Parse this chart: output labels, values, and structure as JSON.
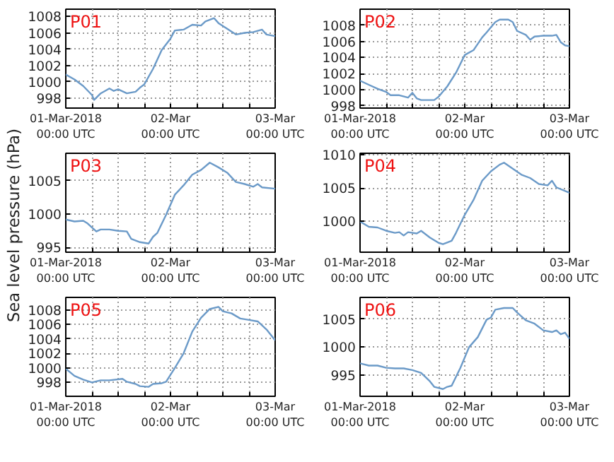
{
  "chart_data": [
    {
      "type": "line",
      "title": "P01",
      "x": [
        "2018-03-01T00:00",
        "2018-03-01T02:00",
        "2018-03-01T04:00",
        "2018-03-01T06:00",
        "2018-03-01T06:30",
        "2018-03-01T08:00",
        "2018-03-01T10:00",
        "2018-03-01T11:00",
        "2018-03-01T12:00",
        "2018-03-01T14:00",
        "2018-03-01T16:00",
        "2018-03-01T17:00",
        "2018-03-01T18:00",
        "2018-03-01T20:00",
        "2018-03-01T22:00",
        "2018-03-02T00:00",
        "2018-03-02T01:00",
        "2018-03-02T03:00",
        "2018-03-02T05:00",
        "2018-03-02T07:00",
        "2018-03-02T08:00",
        "2018-03-02T10:00",
        "2018-03-02T11:00",
        "2018-03-02T13:00",
        "2018-03-02T15:00",
        "2018-03-02T17:00",
        "2018-03-02T19:00",
        "2018-03-02T21:00",
        "2018-03-02T22:00",
        "2018-03-03T00:00"
      ],
      "series": [
        {
          "color": "#6b9ac8",
          "values": [
            1000.9,
            1000.3,
            999.5,
            998.4,
            997.8,
            998.6,
            999.2,
            998.9,
            999.1,
            998.6,
            998.8,
            999.3,
            999.7,
            1001.6,
            1003.9,
            1005.3,
            1006.3,
            1006.4,
            1007.0,
            1006.9,
            1007.4,
            1007.8,
            1007.2,
            1006.5,
            1005.8,
            1006.0,
            1006.1,
            1006.4,
            1005.8,
            1005.6
          ]
        }
      ],
      "xlim": [
        "2018-03-01T00:00",
        "2018-03-03T00:00"
      ],
      "xticks": [
        {
          "value": "2018-03-01T00:00",
          "label": "01-Mar-2018\n00:00 UTC"
        },
        {
          "value": "2018-03-01T06:00",
          "label": null
        },
        {
          "value": "2018-03-01T12:00",
          "label": null
        },
        {
          "value": "2018-03-01T18:00",
          "label": null
        },
        {
          "value": "2018-03-02T00:00",
          "label": "02-Mar\n00:00 UTC"
        },
        {
          "value": "2018-03-02T06:00",
          "label": null
        },
        {
          "value": "2018-03-02T12:00",
          "label": null
        },
        {
          "value": "2018-03-02T18:00",
          "label": null
        },
        {
          "value": "2018-03-03T00:00",
          "label": "03-Mar\n00:00 UTC"
        }
      ],
      "ylim": [
        996.8,
        1008.9
      ],
      "yticks": [
        998,
        1000,
        1002,
        1004,
        1006,
        1008
      ],
      "grid": true
    },
    {
      "type": "line",
      "title": "P02",
      "x": [
        "2018-03-01T00:00",
        "2018-03-01T02:00",
        "2018-03-01T04:00",
        "2018-03-01T06:00",
        "2018-03-01T07:00",
        "2018-03-01T09:00",
        "2018-03-01T11:00",
        "2018-03-01T12:00",
        "2018-03-01T13:00",
        "2018-03-01T14:00",
        "2018-03-01T17:00",
        "2018-03-01T18:00",
        "2018-03-01T20:00",
        "2018-03-01T22:00",
        "2018-03-02T00:00",
        "2018-03-02T02:00",
        "2018-03-02T04:00",
        "2018-03-02T05:00",
        "2018-03-02T07:00",
        "2018-03-02T08:00",
        "2018-03-02T10:00",
        "2018-03-02T11:00",
        "2018-03-02T12:00",
        "2018-03-02T14:00",
        "2018-03-02T15:00",
        "2018-03-02T16:00",
        "2018-03-02T18:00",
        "2018-03-02T20:00",
        "2018-03-02T21:00",
        "2018-03-02T22:00",
        "2018-03-02T23:00",
        "2018-03-03T00:00"
      ],
      "series": [
        {
          "color": "#6b9ac8",
          "values": [
            1001.1,
            1000.6,
            1000.1,
            999.7,
            999.3,
            999.3,
            999.0,
            999.6,
            998.9,
            998.7,
            998.7,
            999.1,
            1000.4,
            1002.1,
            1004.3,
            1004.9,
            1006.5,
            1007.1,
            1008.4,
            1008.7,
            1008.7,
            1008.4,
            1007.3,
            1006.8,
            1006.2,
            1006.6,
            1006.7,
            1006.7,
            1006.8,
            1005.9,
            1005.5,
            1005.4
          ]
        }
      ],
      "xlim": [
        "2018-03-01T00:00",
        "2018-03-03T00:00"
      ],
      "xticks": [
        {
          "value": "2018-03-01T00:00",
          "label": "01-Mar-2018\n00:00 UTC"
        },
        {
          "value": "2018-03-01T06:00",
          "label": null
        },
        {
          "value": "2018-03-01T12:00",
          "label": null
        },
        {
          "value": "2018-03-01T18:00",
          "label": null
        },
        {
          "value": "2018-03-02T00:00",
          "label": "02-Mar\n00:00 UTC"
        },
        {
          "value": "2018-03-02T06:00",
          "label": null
        },
        {
          "value": "2018-03-02T12:00",
          "label": null
        },
        {
          "value": "2018-03-02T18:00",
          "label": null
        },
        {
          "value": "2018-03-03T00:00",
          "label": "03-Mar\n00:00 UTC"
        }
      ],
      "ylim": [
        997.7,
        1010.0
      ],
      "yticks": [
        998,
        1000,
        1002,
        1004,
        1006,
        1008
      ],
      "grid": true
    },
    {
      "type": "line",
      "title": "P03",
      "ylabel": "Sea level pressure (hPa)",
      "x": [
        "2018-03-01T00:00",
        "2018-03-01T02:00",
        "2018-03-01T04:00",
        "2018-03-01T05:00",
        "2018-03-01T07:00",
        "2018-03-01T08:00",
        "2018-03-01T10:00",
        "2018-03-01T12:00",
        "2018-03-01T14:00",
        "2018-03-01T15:00",
        "2018-03-01T17:00",
        "2018-03-01T19:00",
        "2018-03-01T20:00",
        "2018-03-01T21:00",
        "2018-03-01T23:00",
        "2018-03-02T01:00",
        "2018-03-02T03:00",
        "2018-03-02T05:00",
        "2018-03-02T07:00",
        "2018-03-02T09:00",
        "2018-03-02T11:00",
        "2018-03-02T13:00",
        "2018-03-02T15:00",
        "2018-03-02T17:00",
        "2018-03-02T19:00",
        "2018-03-02T20:00",
        "2018-03-02T21:00",
        "2018-03-03T00:00"
      ],
      "series": [
        {
          "color": "#6b9ac8",
          "values": [
            999.2,
            998.9,
            999.0,
            998.6,
            997.4,
            997.7,
            997.7,
            997.5,
            997.4,
            996.3,
            995.8,
            995.6,
            996.6,
            997.2,
            999.9,
            1002.9,
            1004.3,
            1005.9,
            1006.6,
            1007.7,
            1007.0,
            1006.2,
            1004.8,
            1004.5,
            1004.1,
            1004.5,
            1004.0,
            1003.8
          ]
        }
      ],
      "xlim": [
        "2018-03-01T00:00",
        "2018-03-03T00:00"
      ],
      "xticks": [
        {
          "value": "2018-03-01T00:00",
          "label": "01-Mar-2018\n00:00 UTC"
        },
        {
          "value": "2018-03-01T06:00",
          "label": null
        },
        {
          "value": "2018-03-01T12:00",
          "label": null
        },
        {
          "value": "2018-03-01T18:00",
          "label": null
        },
        {
          "value": "2018-03-02T00:00",
          "label": "02-Mar\n00:00 UTC"
        },
        {
          "value": "2018-03-02T06:00",
          "label": null
        },
        {
          "value": "2018-03-02T12:00",
          "label": null
        },
        {
          "value": "2018-03-02T18:00",
          "label": null
        },
        {
          "value": "2018-03-03T00:00",
          "label": "03-Mar\n00:00 UTC"
        }
      ],
      "ylim": [
        994.3,
        1009.1
      ],
      "yticks": [
        995,
        1000,
        1005
      ],
      "grid": true
    },
    {
      "type": "line",
      "title": "P04",
      "x": [
        "2018-03-01T00:00",
        "2018-03-01T02:00",
        "2018-03-01T04:00",
        "2018-03-01T06:00",
        "2018-03-01T08:00",
        "2018-03-01T09:00",
        "2018-03-01T10:00",
        "2018-03-01T11:00",
        "2018-03-01T13:00",
        "2018-03-01T14:00",
        "2018-03-01T16:00",
        "2018-03-01T18:00",
        "2018-03-01T19:00",
        "2018-03-01T21:00",
        "2018-03-01T22:00",
        "2018-03-02T00:00",
        "2018-03-02T02:00",
        "2018-03-02T04:00",
        "2018-03-02T06:00",
        "2018-03-02T08:00",
        "2018-03-02T09:00",
        "2018-03-02T11:00",
        "2018-03-02T13:00",
        "2018-03-02T15:00",
        "2018-03-02T17:00",
        "2018-03-02T19:00",
        "2018-03-02T20:00",
        "2018-03-02T21:00",
        "2018-03-03T00:00"
      ],
      "series": [
        {
          "color": "#6b9ac8",
          "values": [
            1000.0,
            999.2,
            999.1,
            998.6,
            998.3,
            998.4,
            997.9,
            998.4,
            998.2,
            998.6,
            997.6,
            996.8,
            996.6,
            997.1,
            998.3,
            1001.0,
            1003.2,
            1006.1,
            1007.5,
            1008.5,
            1008.8,
            1007.9,
            1007.0,
            1006.5,
            1005.6,
            1005.4,
            1006.1,
            1005.1,
            1004.3
          ]
        }
      ],
      "xlim": [
        "2018-03-01T00:00",
        "2018-03-03T00:00"
      ],
      "xticks": [
        {
          "value": "2018-03-01T00:00",
          "label": "01-Mar-2018\n00:00 UTC"
        },
        {
          "value": "2018-03-01T06:00",
          "label": null
        },
        {
          "value": "2018-03-01T12:00",
          "label": null
        },
        {
          "value": "2018-03-01T18:00",
          "label": null
        },
        {
          "value": "2018-03-02T00:00",
          "label": "02-Mar\n00:00 UTC"
        },
        {
          "value": "2018-03-02T06:00",
          "label": null
        },
        {
          "value": "2018-03-02T12:00",
          "label": null
        },
        {
          "value": "2018-03-02T18:00",
          "label": null
        },
        {
          "value": "2018-03-03T00:00",
          "label": "03-Mar\n00:00 UTC"
        }
      ],
      "ylim": [
        995.4,
        1010.2
      ],
      "yticks": [
        1000,
        1005,
        1010
      ],
      "grid": true
    },
    {
      "type": "line",
      "title": "P05",
      "x": [
        "2018-03-01T00:00",
        "2018-03-01T02:00",
        "2018-03-01T04:00",
        "2018-03-01T06:00",
        "2018-03-01T08:00",
        "2018-03-01T10:00",
        "2018-03-01T13:00",
        "2018-03-01T14:00",
        "2018-03-01T16:00",
        "2018-03-01T17:00",
        "2018-03-01T19:00",
        "2018-03-01T20:00",
        "2018-03-01T22:00",
        "2018-03-01T23:00",
        "2018-03-02T01:00",
        "2018-03-02T03:00",
        "2018-03-02T05:00",
        "2018-03-02T07:00",
        "2018-03-02T09:00",
        "2018-03-02T11:00",
        "2018-03-02T12:00",
        "2018-03-02T14:00",
        "2018-03-02T16:00",
        "2018-03-02T18:00",
        "2018-03-02T20:00",
        "2018-03-02T22:00",
        "2018-03-03T00:00"
      ],
      "series": [
        {
          "color": "#6b9ac8",
          "values": [
            999.9,
            998.9,
            998.4,
            998.0,
            998.3,
            998.3,
            998.5,
            998.1,
            997.8,
            997.5,
            997.4,
            997.8,
            997.9,
            998.1,
            1000.0,
            1002.0,
            1005.0,
            1006.9,
            1008.1,
            1008.4,
            1007.8,
            1007.5,
            1006.8,
            1006.6,
            1006.4,
            1005.3,
            1003.8
          ]
        }
      ],
      "xlim": [
        "2018-03-01T00:00",
        "2018-03-03T00:00"
      ],
      "xticks": [
        {
          "value": "2018-03-01T00:00",
          "label": "01-Mar-2018\n00:00 UTC"
        },
        {
          "value": "2018-03-01T06:00",
          "label": null
        },
        {
          "value": "2018-03-01T12:00",
          "label": null
        },
        {
          "value": "2018-03-01T18:00",
          "label": null
        },
        {
          "value": "2018-03-02T00:00",
          "label": "02-Mar\n00:00 UTC"
        },
        {
          "value": "2018-03-02T06:00",
          "label": null
        },
        {
          "value": "2018-03-02T12:00",
          "label": null
        },
        {
          "value": "2018-03-02T18:00",
          "label": null
        },
        {
          "value": "2018-03-03T00:00",
          "label": "03-Mar\n00:00 UTC"
        }
      ],
      "ylim": [
        996.1,
        1009.7
      ],
      "yticks": [
        998,
        1000,
        1002,
        1004,
        1006,
        1008
      ],
      "grid": true
    },
    {
      "type": "line",
      "title": "P06",
      "x": [
        "2018-03-01T00:00",
        "2018-03-01T02:00",
        "2018-03-01T04:00",
        "2018-03-01T06:00",
        "2018-03-01T08:00",
        "2018-03-01T10:00",
        "2018-03-01T12:00",
        "2018-03-01T14:00",
        "2018-03-01T16:00",
        "2018-03-01T17:00",
        "2018-03-01T19:00",
        "2018-03-01T20:00",
        "2018-03-01T21:00",
        "2018-03-01T23:00",
        "2018-03-02T01:00",
        "2018-03-02T03:00",
        "2018-03-02T05:00",
        "2018-03-02T06:00",
        "2018-03-02T07:00",
        "2018-03-02T09:00",
        "2018-03-02T11:00",
        "2018-03-02T12:00",
        "2018-03-02T14:00",
        "2018-03-02T16:00",
        "2018-03-02T18:00",
        "2018-03-02T20:00",
        "2018-03-02T21:00",
        "2018-03-02T22:00",
        "2018-03-02T23:00",
        "2018-03-03T00:00"
      ],
      "series": [
        {
          "color": "#6b9ac8",
          "values": [
            997.1,
            996.7,
            996.7,
            996.3,
            996.2,
            996.2,
            995.9,
            995.4,
            993.9,
            992.9,
            992.5,
            992.9,
            993.1,
            996.3,
            1000.0,
            1001.8,
            1004.9,
            1005.3,
            1006.7,
            1007.0,
            1007.0,
            1006.2,
            1004.8,
            1004.2,
            1003.0,
            1002.7,
            1003.0,
            1002.3,
            1002.6,
            1001.5
          ]
        }
      ],
      "xlim": [
        "2018-03-01T00:00",
        "2018-03-03T00:00"
      ],
      "xticks": [
        {
          "value": "2018-03-01T00:00",
          "label": "01-Mar-2018\n00:00 UTC"
        },
        {
          "value": "2018-03-01T06:00",
          "label": null
        },
        {
          "value": "2018-03-01T12:00",
          "label": null
        },
        {
          "value": "2018-03-01T18:00",
          "label": null
        },
        {
          "value": "2018-03-02T00:00",
          "label": "02-Mar\n00:00 UTC"
        },
        {
          "value": "2018-03-02T06:00",
          "label": null
        },
        {
          "value": "2018-03-02T12:00",
          "label": null
        },
        {
          "value": "2018-03-02T18:00",
          "label": null
        },
        {
          "value": "2018-03-03T00:00",
          "label": "03-Mar\n00:00 UTC"
        }
      ],
      "ylim": [
        991.2,
        1008.9
      ],
      "yticks": [
        995,
        1000,
        1005
      ],
      "grid": true
    }
  ]
}
